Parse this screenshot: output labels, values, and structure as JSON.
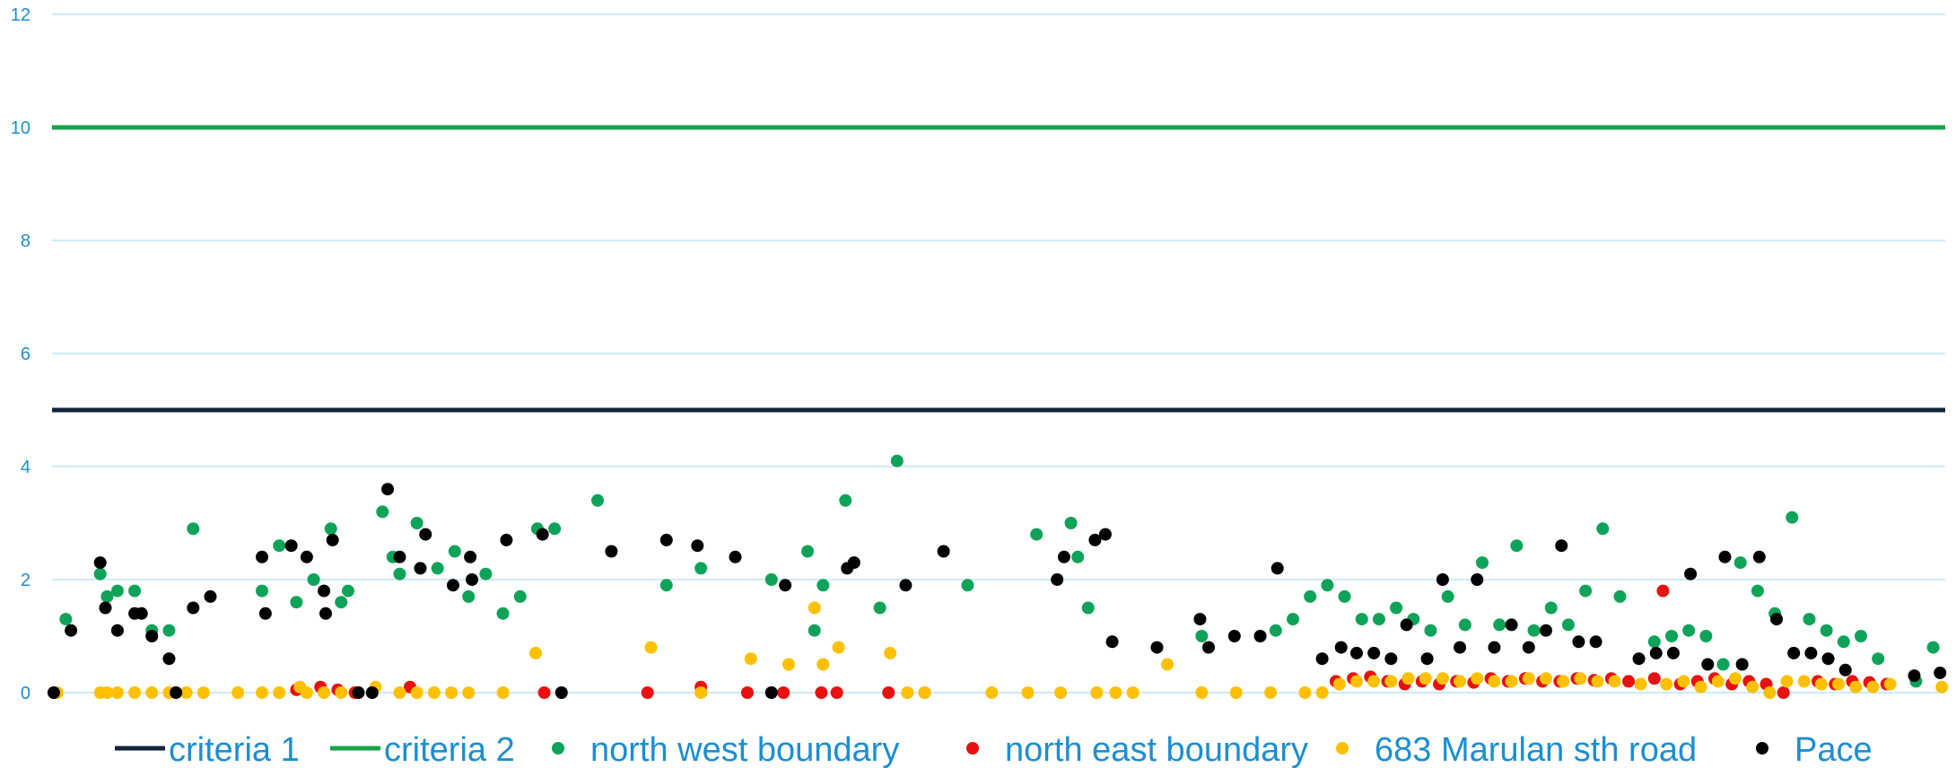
{
  "chart_data": {
    "type": "scatter",
    "title": "",
    "xlabel": "",
    "ylabel": "",
    "ylim": [
      0,
      12
    ],
    "y_ticks": [
      "0",
      "2",
      "4",
      "6",
      "8",
      "10",
      "12"
    ],
    "xlim": [
      0,
      110
    ],
    "grid": true,
    "legend_position": "bottom",
    "colors": {
      "criteria 1": "#10243E",
      "criteria 2": "#16A34A",
      "north west boundary": "#0FA35A",
      "north east boundary": "#E81010",
      "683 Marulan sth road": "#FFC000",
      "Pace": "#000000",
      "tick_text": "#1B8ED1",
      "gridline": "#BDE3F5"
    },
    "series": [
      {
        "name": "criteria 1",
        "kind": "line",
        "x": [
          0,
          110
        ],
        "y": [
          5,
          5
        ]
      },
      {
        "name": "criteria 2",
        "kind": "line",
        "x": [
          0,
          110
        ],
        "y": [
          10,
          10
        ]
      },
      {
        "name": "north west boundary",
        "kind": "scatter",
        "x": [
          0.8,
          2.8,
          3.2,
          3.8,
          4.8,
          5.8,
          6.8,
          8.2,
          12.2,
          13.2,
          14.2,
          15.2,
          16.2,
          16.8,
          17.2,
          19.2,
          19.8,
          20.2,
          21.2,
          22.4,
          23.4,
          24.2,
          25.2,
          26.2,
          27.2,
          28.2,
          29.2,
          31.7,
          35.7,
          37.7,
          41.8,
          43.9,
          44.3,
          44.8,
          46.1,
          48.1,
          49.1,
          53.2,
          57.2,
          59.2,
          59.6,
          60.2,
          66.8,
          71.1,
          72.1,
          73.1,
          74.1,
          75.1,
          76.1,
          77.1,
          78.1,
          79.1,
          80.1,
          81.1,
          82.1,
          83.1,
          84.1,
          85.1,
          86.1,
          87.1,
          88.1,
          89.1,
          90.1,
          91.1,
          93.1,
          94.1,
          95.1,
          96.1,
          97.1,
          98.1,
          99.1,
          100.1,
          101.1,
          102.1,
          103.1,
          104.1,
          105.1,
          106.1,
          108.3,
          109.3
        ],
        "y": [
          1.3,
          2.1,
          1.7,
          1.8,
          1.8,
          1.1,
          1.1,
          2.9,
          1.8,
          2.6,
          1.6,
          2.0,
          2.9,
          1.6,
          1.8,
          3.2,
          2.4,
          2.1,
          3.0,
          2.2,
          2.5,
          1.7,
          2.1,
          1.4,
          1.7,
          2.9,
          2.9,
          3.4,
          1.9,
          2.2,
          2.0,
          2.5,
          1.1,
          1.9,
          3.4,
          1.5,
          4.1,
          1.9,
          2.8,
          3.0,
          2.4,
          1.5,
          1.0,
          1.1,
          1.3,
          1.7,
          1.9,
          1.7,
          1.3,
          1.3,
          1.5,
          1.3,
          1.1,
          1.7,
          1.2,
          2.3,
          1.2,
          2.6,
          1.1,
          1.5,
          1.2,
          1.8,
          2.9,
          1.7,
          0.9,
          1.0,
          1.1,
          1.0,
          0.5,
          2.3,
          1.8,
          1.4,
          3.1,
          1.3,
          1.1,
          0.9,
          1.0,
          0.6,
          0.2,
          0.8
        ]
      },
      {
        "name": "north east boundary",
        "kind": "scatter",
        "x": [
          14.2,
          15.6,
          16.6,
          17.6,
          18.6,
          20.8,
          28.6,
          34.6,
          37.7,
          40.4,
          42.5,
          44.7,
          45.6,
          48.6,
          50.7,
          74.6,
          75.6,
          76.6,
          77.6,
          78.6,
          79.6,
          80.6,
          81.6,
          82.6,
          83.6,
          84.6,
          85.6,
          86.6,
          87.6,
          88.6,
          89.6,
          90.6,
          91.6,
          93.1,
          93.6,
          94.6,
          95.6,
          96.6,
          97.6,
          98.6,
          99.6,
          100.6,
          102.6,
          103.6,
          104.6,
          105.6,
          106.6
        ],
        "y": [
          0.05,
          0.1,
          0.05,
          0.0,
          0.0,
          0.1,
          0.0,
          0.0,
          0.1,
          0.0,
          0.0,
          0.0,
          0.0,
          0.0,
          0.0,
          0.2,
          0.25,
          0.28,
          0.2,
          0.15,
          0.2,
          0.15,
          0.2,
          0.18,
          0.25,
          0.2,
          0.25,
          0.2,
          0.2,
          0.25,
          0.22,
          0.25,
          0.2,
          0.25,
          1.8,
          0.15,
          0.2,
          0.25,
          0.15,
          0.2,
          0.15,
          0.0,
          0.2,
          0.15,
          0.2,
          0.18,
          0.15
        ],
        "hidden": false
      },
      {
        "name": "683 Marulan sth road",
        "kind": "scatter",
        "x": [
          0.3,
          2.8,
          3.2,
          3.8,
          4.8,
          5.8,
          6.8,
          7.8,
          8.8,
          10.8,
          12.2,
          13.2,
          14.4,
          14.8,
          15.8,
          16.8,
          17.8,
          18.8,
          20.2,
          21.2,
          22.2,
          23.2,
          24.2,
          26.2,
          28.1,
          34.8,
          37.7,
          40.6,
          42.8,
          44.3,
          44.8,
          45.7,
          48.7,
          49.7,
          50.7,
          54.6,
          56.7,
          58.6,
          60.7,
          61.8,
          62.8,
          64.8,
          66.8,
          68.8,
          70.8,
          72.8,
          73.8,
          74.8,
          75.8,
          76.8,
          77.8,
          78.8,
          79.8,
          80.8,
          81.8,
          82.8,
          83.8,
          84.8,
          85.8,
          86.8,
          87.8,
          88.8,
          89.8,
          90.8,
          92.3,
          93.8,
          94.8,
          95.8,
          96.8,
          97.8,
          98.8,
          99.8,
          100.8,
          101.8,
          102.8,
          103.8,
          104.8,
          105.8,
          106.8,
          109.8
        ],
        "y": [
          0.0,
          0.0,
          0.0,
          0.0,
          0.0,
          0.0,
          0.0,
          0.0,
          0.0,
          0.0,
          0.0,
          0.0,
          0.1,
          0.0,
          0.0,
          0.0,
          0.0,
          0.1,
          0.0,
          0.0,
          0.0,
          0.0,
          0.0,
          0.0,
          0.7,
          0.8,
          0.0,
          0.6,
          0.5,
          1.5,
          0.5,
          0.8,
          0.7,
          0.0,
          0.0,
          0.0,
          0.0,
          0.0,
          0.0,
          0.0,
          0.0,
          0.5,
          0.0,
          0.0,
          0.0,
          0.0,
          0.0,
          0.15,
          0.2,
          0.2,
          0.2,
          0.25,
          0.25,
          0.25,
          0.2,
          0.25,
          0.2,
          0.2,
          0.25,
          0.25,
          0.2,
          0.25,
          0.2,
          0.2,
          0.15,
          0.15,
          0.2,
          0.1,
          0.2,
          0.25,
          0.1,
          0.0,
          0.2,
          0.2,
          0.15,
          0.15,
          0.1,
          0.1,
          0.15,
          0.1
        ]
      },
      {
        "name": "Pace",
        "kind": "scatter",
        "x": [
          0.1,
          1.1,
          2.8,
          3.1,
          3.8,
          4.8,
          5.2,
          5.8,
          6.8,
          7.2,
          8.2,
          9.2,
          12.2,
          12.4,
          13.9,
          14.8,
          15.8,
          15.9,
          16.3,
          17.8,
          18.6,
          19.5,
          20.2,
          21.4,
          21.7,
          23.3,
          24.3,
          24.4,
          26.4,
          28.5,
          29.6,
          32.5,
          35.7,
          37.5,
          39.7,
          41.8,
          42.6,
          46.2,
          46.6,
          49.6,
          51.8,
          58.4,
          58.8,
          60.6,
          61.2,
          61.6,
          64.2,
          66.7,
          67.2,
          68.7,
          70.2,
          71.2,
          73.8,
          74.9,
          75.8,
          76.8,
          77.8,
          78.7,
          79.9,
          80.8,
          81.8,
          82.8,
          83.8,
          84.8,
          85.8,
          86.8,
          87.7,
          88.7,
          89.7,
          92.2,
          93.2,
          94.2,
          95.2,
          96.2,
          97.2,
          98.2,
          99.2,
          100.2,
          101.2,
          102.2,
          103.2,
          104.2,
          108.2,
          109.7
        ],
        "y": [
          0.0,
          1.1,
          2.3,
          1.5,
          1.1,
          1.4,
          1.4,
          1.0,
          0.6,
          0.0,
          1.5,
          1.7,
          2.4,
          1.4,
          2.6,
          2.4,
          1.8,
          1.4,
          2.7,
          0.0,
          0.0,
          3.6,
          2.4,
          2.2,
          2.8,
          1.9,
          2.4,
          2.0,
          2.7,
          2.8,
          0.0,
          2.5,
          2.7,
          2.6,
          2.4,
          0.0,
          1.9,
          2.2,
          2.3,
          1.9,
          2.5,
          2.0,
          2.4,
          2.7,
          2.8,
          0.9,
          0.8,
          1.3,
          0.8,
          1.0,
          1.0,
          2.2,
          0.6,
          0.8,
          0.7,
          0.7,
          0.6,
          1.2,
          0.6,
          2.0,
          0.8,
          2.0,
          0.8,
          1.2,
          0.8,
          1.1,
          2.6,
          0.9,
          0.9,
          0.6,
          0.7,
          0.7,
          2.1,
          0.5,
          2.4,
          0.5,
          2.4,
          1.3,
          0.7,
          0.7,
          0.6,
          0.4,
          0.3,
          0.35
        ]
      }
    ],
    "legend": [
      {
        "label": "criteria 1",
        "kind": "line"
      },
      {
        "label": "criteria 2",
        "kind": "line"
      },
      {
        "label": "north west boundary",
        "kind": "marker"
      },
      {
        "label": "north east boundary",
        "kind": "marker"
      },
      {
        "label": "683 Marulan sth road",
        "kind": "marker"
      },
      {
        "label": "Pace",
        "kind": "marker"
      }
    ]
  }
}
